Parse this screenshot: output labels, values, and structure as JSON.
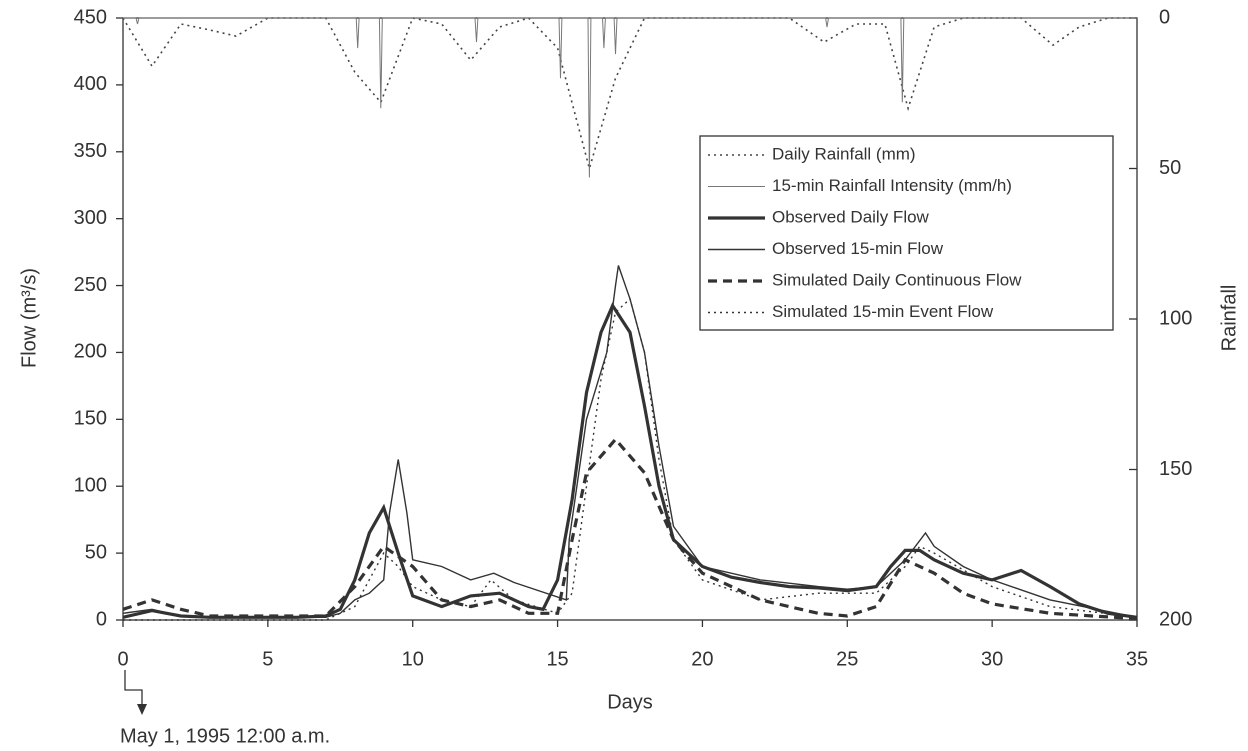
{
  "chart_data": {
    "type": "line",
    "x_label": "Days",
    "y_label": "Flow (m³/s)",
    "y2_label": "Rainfall",
    "annotation": "May 1, 1995 12:00 a.m.",
    "xlim": [
      0,
      35
    ],
    "xticks": [
      0,
      5,
      10,
      15,
      20,
      25,
      30,
      35
    ],
    "ylim": [
      0,
      450
    ],
    "yticks": [
      0,
      50,
      100,
      150,
      200,
      250,
      300,
      350,
      400,
      450
    ],
    "y2lim": [
      200,
      0
    ],
    "y2ticks": [
      0,
      50,
      100,
      150,
      200
    ],
    "series": [
      {
        "name": "Daily Rainfall (mm)",
        "color": "#444",
        "line_style": "dotted",
        "line_width": 1.6,
        "axis": "y2",
        "x": [
          0,
          1,
          2,
          3,
          3.9,
          5,
          6,
          7,
          8,
          8.9,
          10,
          11,
          12,
          13,
          14,
          15,
          16.1,
          17,
          18,
          19,
          20,
          21,
          22,
          23,
          24.2,
          25.3,
          26.3,
          27.1,
          28,
          29,
          30,
          31,
          32.1,
          33,
          34,
          35
        ],
        "values": [
          0,
          16,
          2,
          4,
          6,
          0,
          0,
          0,
          18,
          28,
          0,
          2,
          14,
          3,
          0,
          10,
          50,
          20,
          0,
          0,
          0,
          0,
          0,
          0,
          8,
          2,
          2,
          30,
          3,
          0,
          0,
          0,
          9,
          3,
          0,
          0
        ]
      },
      {
        "name": "15-min Rainfall Intensity (mm/h)",
        "color": "#777",
        "line_style": "solid",
        "line_width": 1,
        "axis": "y2",
        "x": [
          0,
          0.45,
          0.5,
          0.55,
          8.05,
          8.1,
          8.15,
          8.85,
          8.9,
          8.95,
          12.15,
          12.2,
          12.25,
          15.05,
          15.1,
          15.15,
          16.05,
          16.1,
          16.15,
          16.55,
          16.6,
          16.65,
          16.95,
          17.0,
          17.05,
          24.25,
          24.3,
          24.35,
          26.85,
          26.9,
          26.95,
          35
        ],
        "values": [
          0,
          0,
          2,
          0,
          0,
          10,
          0,
          0,
          30,
          0,
          0,
          8,
          0,
          0,
          20,
          0,
          0,
          53,
          0,
          0,
          10,
          0,
          0,
          12,
          0,
          0,
          3,
          0,
          0,
          28,
          0,
          0
        ]
      },
      {
        "name": "Observed Daily Flow",
        "color": "#333",
        "line_style": "solid",
        "line_width": 3.2,
        "x": [
          0,
          1,
          2,
          3,
          4,
          5,
          6,
          7,
          7.5,
          8,
          8.5,
          9,
          9.5,
          10,
          11,
          12,
          13,
          14,
          14.5,
          15,
          15.5,
          16,
          16.5,
          16.9,
          17.5,
          18,
          18.5,
          19,
          20,
          21,
          22,
          23,
          24,
          25,
          26,
          26.5,
          27,
          27.5,
          28,
          29,
          30,
          31,
          32,
          33,
          34,
          35
        ],
        "values": [
          2,
          7,
          3,
          2,
          2,
          2,
          2,
          3,
          8,
          30,
          65,
          84,
          50,
          18,
          10,
          18,
          20,
          10,
          8,
          30,
          90,
          170,
          215,
          235,
          215,
          160,
          100,
          60,
          40,
          32,
          28,
          25,
          24,
          22,
          25,
          40,
          52,
          52,
          45,
          35,
          30,
          37,
          25,
          12,
          5,
          2
        ]
      },
      {
        "name": "Observed 15-min Flow",
        "color": "#333",
        "line_style": "solid",
        "line_width": 1.4,
        "x": [
          0,
          1,
          2,
          3,
          7,
          7.5,
          8,
          8.5,
          9,
          9.2,
          9.5,
          9.8,
          10,
          11,
          12,
          12.8,
          13.5,
          15.3,
          15.4,
          16,
          16.7,
          17,
          17.1,
          17.5,
          18,
          18.5,
          19,
          20,
          22,
          24,
          25,
          26,
          27,
          27.7,
          28,
          29,
          30,
          32,
          35
        ],
        "values": [
          5,
          8,
          3,
          2,
          2,
          5,
          15,
          20,
          30,
          80,
          120,
          80,
          45,
          40,
          30,
          35,
          28,
          15,
          60,
          150,
          200,
          250,
          265,
          240,
          200,
          130,
          70,
          40,
          30,
          25,
          23,
          25,
          45,
          65,
          55,
          40,
          30,
          15,
          2
        ]
      },
      {
        "name": "Simulated Daily Continuous Flow",
        "color": "#333",
        "line_style": "dashed",
        "line_width": 3.2,
        "x": [
          0,
          1,
          2,
          3,
          7,
          8,
          9,
          10,
          11,
          12,
          13,
          14,
          15,
          15.5,
          16,
          17,
          18,
          19,
          20,
          22,
          24,
          25,
          26,
          27,
          28,
          29,
          30,
          32,
          35
        ],
        "values": [
          8,
          15,
          8,
          3,
          3,
          25,
          55,
          40,
          15,
          10,
          15,
          5,
          5,
          60,
          110,
          135,
          110,
          60,
          35,
          15,
          5,
          3,
          10,
          45,
          35,
          20,
          12,
          5,
          1
        ]
      },
      {
        "name": "Simulated 15-min Event Flow",
        "color": "#333",
        "line_style": "dotted",
        "line_width": 1.4,
        "x": [
          0,
          7,
          8,
          9,
          9.5,
          10,
          11,
          12,
          12.7,
          13.5,
          15,
          15.5,
          16,
          16.5,
          17,
          17.5,
          18,
          18.5,
          19,
          20,
          22,
          24,
          26,
          27,
          27.5,
          28,
          30,
          32,
          35
        ],
        "values": [
          0,
          0,
          10,
          50,
          40,
          25,
          15,
          10,
          30,
          15,
          5,
          20,
          100,
          180,
          230,
          240,
          200,
          120,
          60,
          30,
          15,
          20,
          20,
          40,
          55,
          50,
          25,
          10,
          2
        ]
      }
    ]
  }
}
